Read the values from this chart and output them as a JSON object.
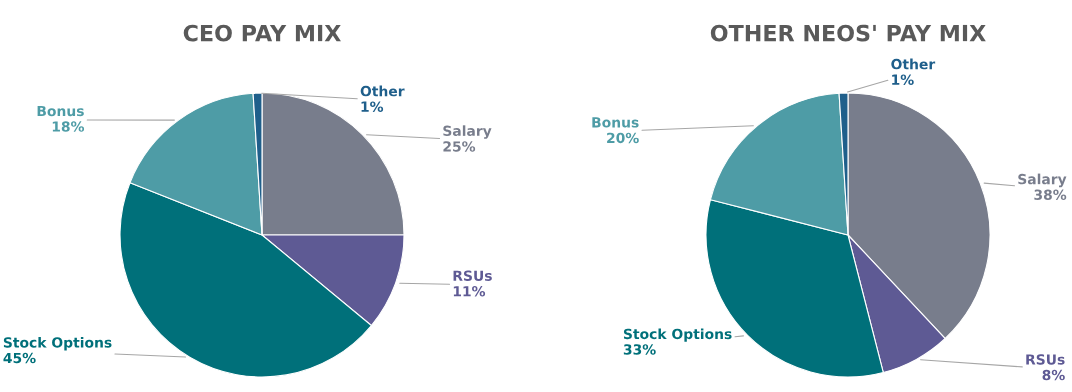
{
  "chart_data": [
    {
      "type": "pie",
      "title": "CEO PAY MIX",
      "categories": [
        "Salary",
        "RSUs",
        "Stock Options",
        "Bonus",
        "Other"
      ],
      "values": [
        25,
        11,
        45,
        18,
        1
      ],
      "value_labels": [
        "25%",
        "11%",
        "45%",
        "18%",
        "1%"
      ],
      "colors": [
        "#787d8c",
        "#5e5a94",
        "#00707a",
        "#4e9ca6",
        "#1f5f8b"
      ]
    },
    {
      "type": "pie",
      "title": "OTHER NEOS' PAY MIX",
      "categories": [
        "Salary",
        "RSUs",
        "Stock Options",
        "Bonus",
        "Other"
      ],
      "values": [
        38,
        8,
        33,
        20,
        1
      ],
      "value_labels": [
        "38%",
        "8%",
        "33%",
        "20%",
        "1%"
      ],
      "colors": [
        "#787d8c",
        "#5e5a94",
        "#00707a",
        "#4e9ca6",
        "#1f5f8b"
      ]
    }
  ]
}
